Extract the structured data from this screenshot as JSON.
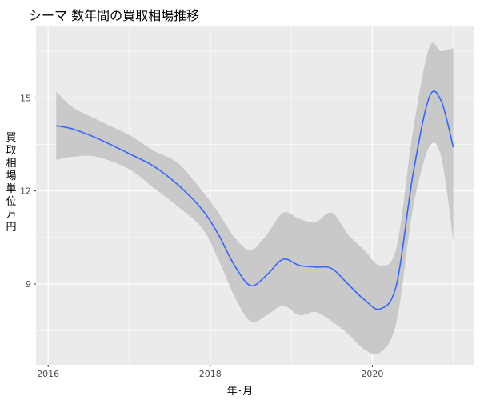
{
  "chart_data": {
    "type": "line",
    "title": "シーマ 数年間の買取相場推移",
    "xlabel": "年･月",
    "ylabel": "買取相場　単位　万円",
    "x_ticks": [
      "2016",
      "2018",
      "2020"
    ],
    "y_ticks": [
      "9",
      "12",
      "15"
    ],
    "xlim": [
      2015.85,
      2021.25
    ],
    "ylim": [
      6.4,
      17.3
    ],
    "grid": true,
    "series": [
      {
        "x": [
          2016.1,
          2016.3,
          2016.6,
          2017.0,
          2017.3,
          2017.6,
          2017.9,
          2018.1,
          2018.3,
          2018.5,
          2018.7,
          2018.9,
          2019.1,
          2019.3,
          2019.5,
          2019.7,
          2019.9,
          2020.1,
          2020.3,
          2020.5,
          2020.7,
          2020.85,
          2021.0
        ],
        "y": [
          14.1,
          14.0,
          13.7,
          13.2,
          12.8,
          12.2,
          11.4,
          10.6,
          9.6,
          8.95,
          9.3,
          9.8,
          9.6,
          9.55,
          9.5,
          9.0,
          8.5,
          8.2,
          9.0,
          12.5,
          15.0,
          14.9,
          13.4
        ],
        "ci_lower": [
          13.0,
          13.1,
          13.1,
          12.7,
          12.1,
          11.5,
          10.8,
          9.8,
          8.6,
          7.8,
          8.0,
          8.3,
          8.0,
          8.1,
          7.8,
          7.4,
          6.9,
          6.8,
          7.8,
          11.4,
          13.4,
          13.1,
          10.4
        ],
        "ci_upper": [
          15.2,
          14.7,
          14.3,
          13.8,
          13.3,
          12.9,
          12.0,
          11.3,
          10.5,
          10.1,
          10.6,
          11.3,
          11.1,
          11.0,
          11.3,
          10.6,
          10.1,
          9.6,
          10.2,
          13.9,
          16.6,
          16.5,
          16.6
        ]
      }
    ],
    "colors": {
      "line": "#3366FF",
      "band": "#C9C9C9",
      "panel": "#EBEBEB",
      "grid": "#FFFFFF"
    }
  }
}
